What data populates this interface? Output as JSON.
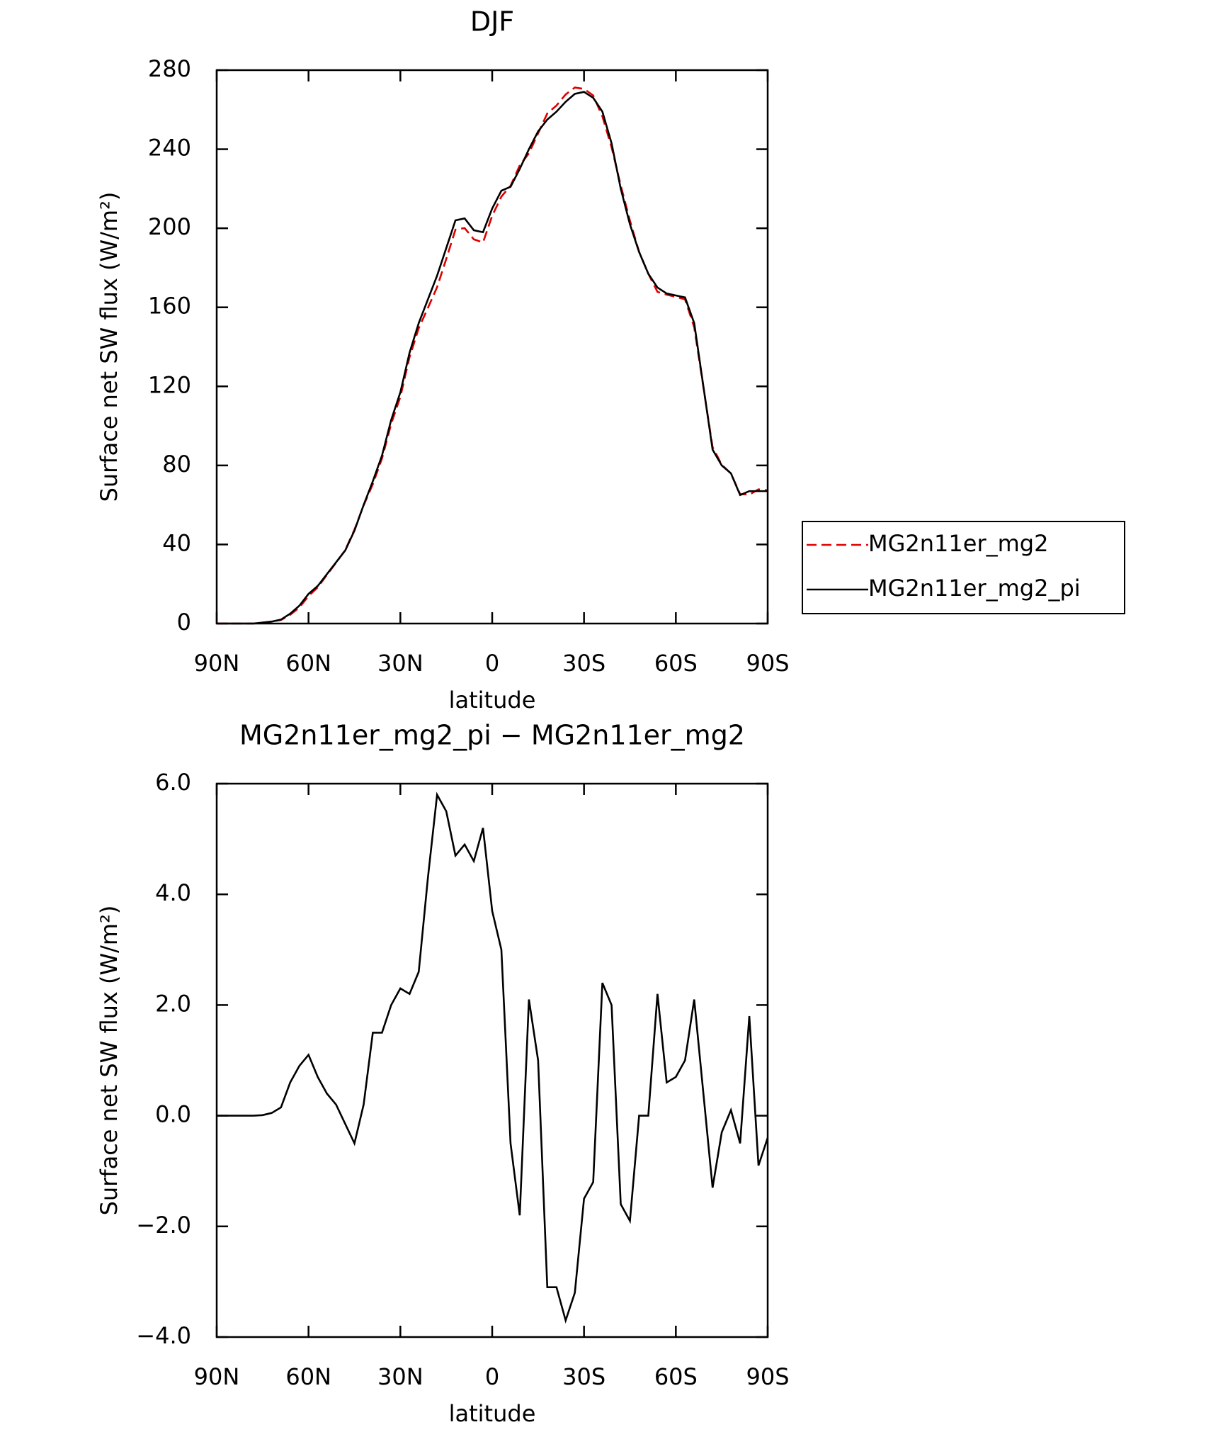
{
  "chart_data": [
    {
      "type": "line",
      "title": "DJF",
      "x_label": "latitude",
      "y_label": "Surface net SW flux (W/m²)",
      "x": [
        90,
        87,
        84,
        81,
        78,
        75,
        72,
        69,
        66,
        63,
        60,
        57,
        54,
        51,
        48,
        45,
        42,
        39,
        36,
        33,
        30,
        27,
        24,
        21,
        18,
        15,
        12,
        9,
        6,
        3,
        0,
        -3,
        -6,
        -9,
        -12,
        -15,
        -18,
        -21,
        -24,
        -27,
        -30,
        -33,
        -36,
        -39,
        -42,
        -45,
        -48,
        -51,
        -54,
        -57,
        -60,
        -63,
        -66,
        -69,
        -72,
        -75,
        -78,
        -81,
        -84,
        -87,
        -90
      ],
      "series": [
        {
          "name": "MG2n11er_mg2",
          "color": "#e00000",
          "line_style": "dashed",
          "values": [
            0,
            0,
            0,
            0,
            0,
            0.5,
            1,
            1.8,
            4.4,
            8.1,
            13.9,
            18.3,
            24.6,
            30.8,
            37.2,
            47.5,
            59.8,
            70.5,
            83.5,
            101,
            114.7,
            134.8,
            149.4,
            159.7,
            170.2,
            184.5,
            199.3,
            200.1,
            194.4,
            192.8,
            206.3,
            216,
            221.5,
            231.8,
            237.9,
            248,
            258.1,
            262.1,
            267.7,
            271.2,
            270.5,
            267.2,
            256.6,
            241,
            221.6,
            203.9,
            188,
            177,
            167.8,
            166.4,
            165.3,
            164,
            149.9,
            119.6,
            89.3,
            80.3,
            75.9,
            65.5,
            65.2,
            67.9,
            67.4
          ]
        },
        {
          "name": "MG2n11er_mg2_pi",
          "color": "#000000",
          "line_style": "solid",
          "values": [
            0,
            0,
            0,
            0,
            0,
            0.5,
            1,
            2,
            5,
            9,
            15,
            19,
            25,
            31,
            37,
            47,
            60,
            72,
            85,
            103,
            117,
            137,
            152,
            164,
            176,
            190,
            204,
            205,
            199,
            198,
            210,
            219,
            221,
            230,
            240,
            249,
            255,
            259,
            264,
            268,
            269,
            266,
            259,
            243,
            220,
            202,
            188,
            177,
            170,
            167,
            166,
            165,
            152,
            120,
            88,
            80,
            76,
            65,
            67,
            67,
            67
          ]
        }
      ],
      "xlim": [
        90,
        -90
      ],
      "xticks": [
        {
          "value": 90,
          "label": "90N"
        },
        {
          "value": 60,
          "label": "60N"
        },
        {
          "value": 30,
          "label": "30N"
        },
        0,
        {
          "value": -30,
          "label": "30S"
        },
        {
          "value": -60,
          "label": "60S"
        },
        {
          "value": -90,
          "label": "90S"
        }
      ],
      "ylim": [
        0,
        280
      ],
      "yticks": [
        0,
        40,
        80,
        120,
        160,
        200,
        240,
        280
      ],
      "legend": "outside-right"
    },
    {
      "type": "line",
      "title": "MG2n11er_mg2_pi − MG2n11er_mg2",
      "x_label": "latitude",
      "y_label": "Surface net SW flux (W/m²)",
      "x": [
        90,
        87,
        84,
        81,
        78,
        75,
        72,
        69,
        66,
        63,
        60,
        57,
        54,
        51,
        48,
        45,
        42,
        39,
        36,
        33,
        30,
        27,
        24,
        21,
        18,
        15,
        12,
        9,
        6,
        3,
        0,
        -3,
        -6,
        -9,
        -12,
        -15,
        -18,
        -21,
        -24,
        -27,
        -30,
        -33,
        -36,
        -39,
        -42,
        -45,
        -48,
        -51,
        -54,
        -57,
        -60,
        -63,
        -66,
        -69,
        -72,
        -75,
        -78,
        -81,
        -84,
        -87,
        -90
      ],
      "series": [
        {
          "color": "#000000",
          "line_style": "solid",
          "values": [
            0,
            0,
            0,
            0,
            0,
            0.01,
            0.05,
            0.15,
            0.6,
            0.9,
            1.1,
            0.7,
            0.4,
            0.2,
            -0.15,
            -0.5,
            0.2,
            1.5,
            1.5,
            2.0,
            2.3,
            2.2,
            2.6,
            4.3,
            5.8,
            5.5,
            4.7,
            4.9,
            4.6,
            5.2,
            3.7,
            3.0,
            -0.5,
            -1.8,
            2.1,
            1.0,
            -3.1,
            -3.1,
            -3.7,
            -3.2,
            -1.5,
            -1.2,
            2.4,
            2.0,
            -1.6,
            -1.9,
            0.0,
            0.0,
            2.2,
            0.6,
            0.7,
            1.0,
            2.1,
            0.4,
            -1.3,
            -0.3,
            0.1,
            -0.5,
            1.8,
            -0.9,
            -0.4
          ]
        }
      ],
      "xlim": [
        90,
        -90
      ],
      "xticks": [
        {
          "value": 90,
          "label": "90N"
        },
        {
          "value": 60,
          "label": "60N"
        },
        {
          "value": 30,
          "label": "30N"
        },
        0,
        {
          "value": -30,
          "label": "30S"
        },
        {
          "value": -60,
          "label": "60S"
        },
        {
          "value": -90,
          "label": "90S"
        }
      ],
      "ylim": [
        -4,
        6
      ],
      "yticks": [
        {
          "value": -4,
          "label": "−4.0"
        },
        {
          "value": -2,
          "label": "−2.0"
        },
        {
          "value": 0,
          "label": "0.0"
        },
        {
          "value": 2,
          "label": "2.0"
        },
        {
          "value": 4,
          "label": "4.0"
        },
        {
          "value": 6,
          "label": "6.0"
        }
      ]
    }
  ]
}
